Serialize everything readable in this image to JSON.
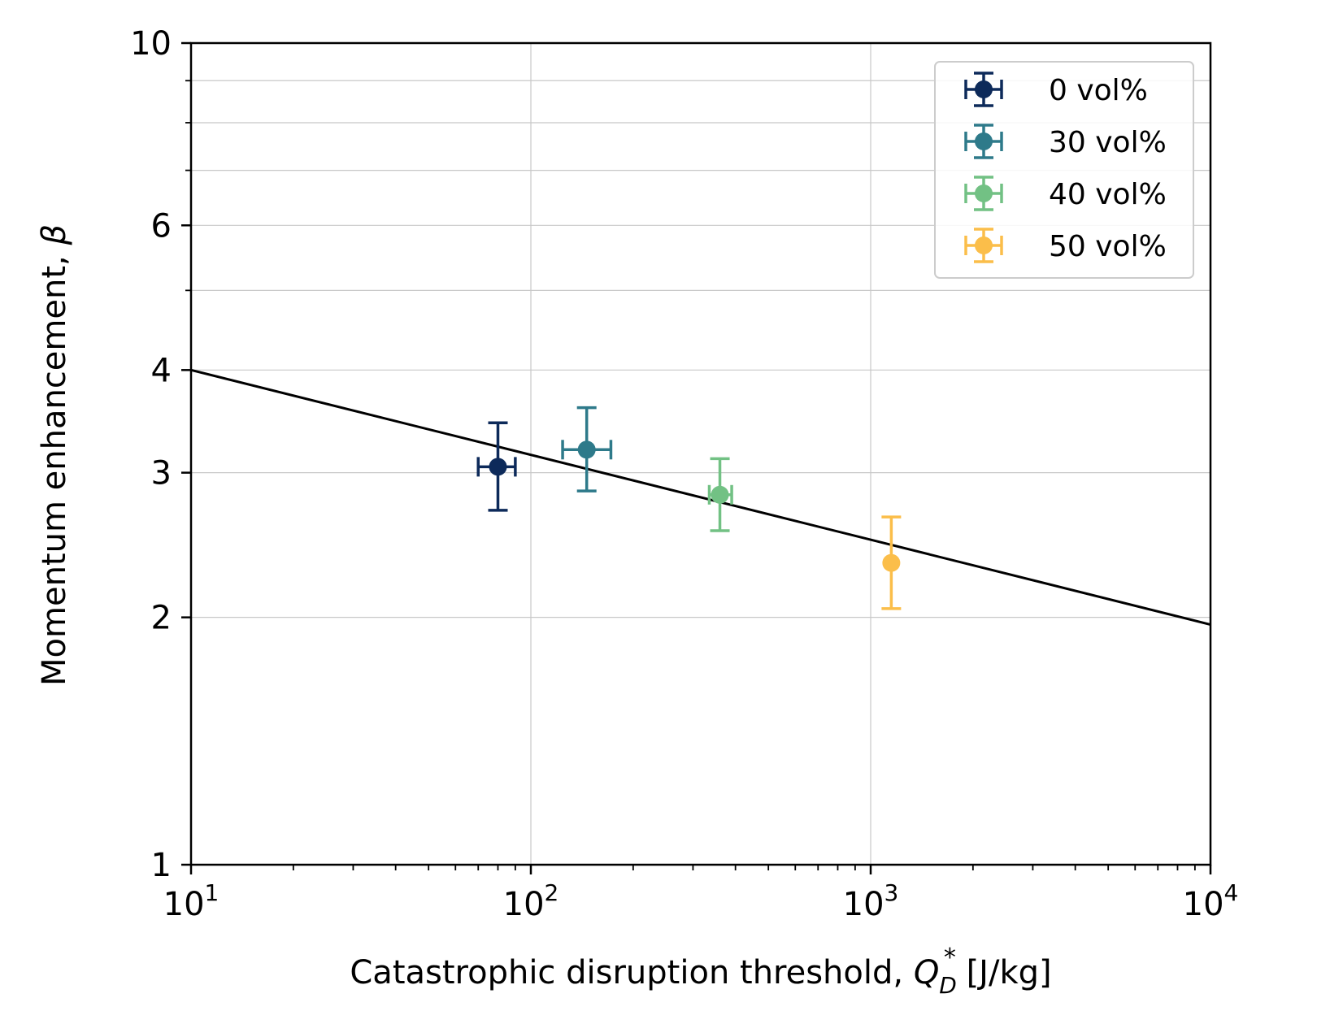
{
  "chart_data": {
    "type": "scatter",
    "title": "",
    "xlabel": {
      "main": "Catastrophic disruption threshold, ",
      "q": "Q",
      "sub": "D",
      "sup": "*",
      "unit": " [J/kg]"
    },
    "ylabel": {
      "main": "Momentum enhancement, ",
      "sym": "β"
    },
    "xscale": "log",
    "yscale": "log",
    "xlim": [
      10,
      10000
    ],
    "ylim": [
      1,
      10
    ],
    "grid": true,
    "legend_position": "top-right",
    "x_ticks": [
      {
        "value": 10,
        "base": "10",
        "exp": "1"
      },
      {
        "value": 100,
        "base": "10",
        "exp": "2"
      },
      {
        "value": 1000,
        "base": "10",
        "exp": "3"
      },
      {
        "value": 10000,
        "base": "10",
        "exp": "4"
      }
    ],
    "y_ticks": [
      {
        "value": 1,
        "label": "1"
      },
      {
        "value": 2,
        "label": "2"
      },
      {
        "value": 3,
        "label": "3"
      },
      {
        "value": 4,
        "label": "4"
      },
      {
        "value": 6,
        "label": "6"
      },
      {
        "value": 10,
        "label": "10"
      }
    ],
    "y_minor_ticks": [
      5,
      7,
      8,
      9
    ],
    "series": [
      {
        "name": "0 vol%",
        "color": "#0d2a5a",
        "x": 80,
        "y": 3.05,
        "xerr_low": 70,
        "xerr_high": 90,
        "yerr_low": 2.7,
        "yerr_high": 3.45
      },
      {
        "name": "30 vol%",
        "color": "#2e7a8a",
        "x": 146,
        "y": 3.2,
        "xerr_low": 124,
        "xerr_high": 172,
        "yerr_low": 2.85,
        "yerr_high": 3.6
      },
      {
        "name": "40 vol%",
        "color": "#72c184",
        "x": 360,
        "y": 2.82,
        "xerr_low": 335,
        "xerr_high": 390,
        "yerr_low": 2.55,
        "yerr_high": 3.12
      },
      {
        "name": "50 vol%",
        "color": "#fbbe4a",
        "x": 1150,
        "y": 2.33,
        "xerr_low": 1150,
        "xerr_high": 1150,
        "yerr_low": 2.05,
        "yerr_high": 2.65
      }
    ],
    "fit_line": {
      "color": "#000000",
      "x": [
        10,
        10000
      ],
      "y": [
        4.0,
        1.96
      ]
    }
  }
}
